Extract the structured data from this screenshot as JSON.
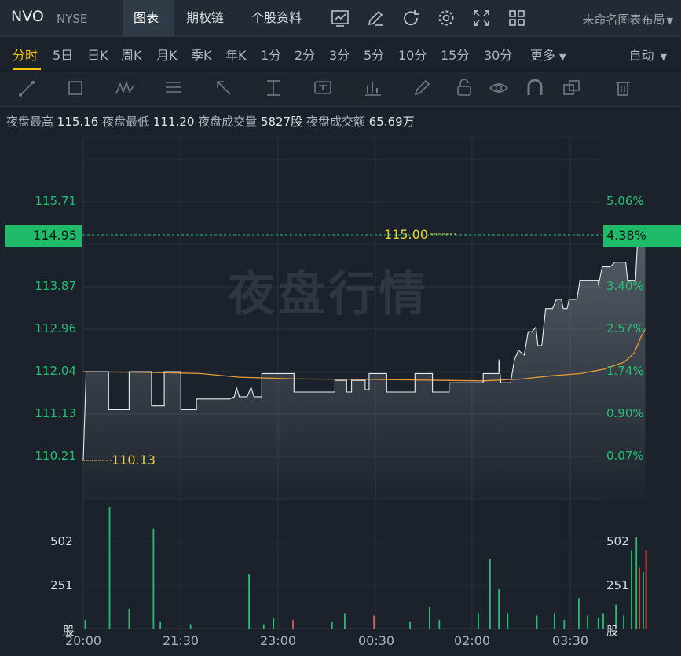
{
  "header": {
    "ticker": "NVO",
    "exchange": "NYSE",
    "tabs": [
      {
        "label": "图表"
      },
      {
        "label": "期权链"
      },
      {
        "label": "个股资料"
      }
    ],
    "icons": [
      "chart-add-icon",
      "pencil-icon",
      "refresh-icon",
      "gear-icon",
      "fullscreen-icon",
      "grid-layout-icon"
    ],
    "layout_label": "未命名图表布局"
  },
  "periods": {
    "items": [
      "分时",
      "5日",
      "日K",
      "周K",
      "月K",
      "季K",
      "年K",
      "1分",
      "2分",
      "3分",
      "5分",
      "10分",
      "15分",
      "30分",
      "更多"
    ],
    "active": "分时",
    "auto_label": "自动"
  },
  "stats": {
    "high_label": "夜盘最高",
    "high": "115.16",
    "low_label": "夜盘最低",
    "low": "111.20",
    "volume_label": "夜盘成交量",
    "volume": "5827股",
    "amount_label": "夜盘成交额",
    "amount": "65.69万"
  },
  "watermark": "夜盘行情",
  "colors": {
    "up": "#21c173",
    "down": "#e05a5a",
    "avg_line": "#e89a3c",
    "price_line": "#e8ecf0",
    "badge": "#1fbb6b"
  },
  "chart_data": {
    "type": "line",
    "price_axis": [
      "115.71",
      "113.87",
      "112.96",
      "112.04",
      "111.13",
      "110.21"
    ],
    "pct_axis": [
      "5.06%",
      "3.40%",
      "2.57%",
      "1.74%",
      "0.90%",
      "0.07%"
    ],
    "current_price": "114.95",
    "current_pct": "4.38%",
    "high_annotation": "115.00",
    "low_annotation": "110.13",
    "x_ticks": [
      "20:00",
      "21:30",
      "23:00",
      "00:30",
      "02:00",
      "03:30"
    ],
    "volume_axis": [
      "502",
      "251"
    ],
    "volume_unit": "股",
    "price_series": [
      [
        0,
        110.13
      ],
      [
        0.3,
        112.04
      ],
      [
        2.6,
        112.04
      ],
      [
        2.6,
        111.22
      ],
      [
        4.7,
        111.22
      ],
      [
        4.7,
        112.04
      ],
      [
        7.0,
        112.04
      ],
      [
        7.0,
        111.3
      ],
      [
        8.3,
        111.3
      ],
      [
        8.3,
        112.04
      ],
      [
        10.0,
        112.04
      ],
      [
        10.0,
        111.22
      ],
      [
        11.6,
        111.22
      ],
      [
        11.6,
        111.45
      ],
      [
        13.8,
        111.45
      ],
      [
        15.0,
        111.45
      ],
      [
        15.5,
        111.5
      ],
      [
        15.7,
        111.7
      ],
      [
        16.0,
        111.5
      ],
      [
        16.8,
        111.5
      ],
      [
        17.2,
        111.7
      ],
      [
        17.5,
        111.5
      ],
      [
        18.3,
        111.5
      ],
      [
        18.3,
        112.0
      ],
      [
        21.6,
        112.0
      ],
      [
        21.6,
        111.6
      ],
      [
        25.8,
        111.6
      ],
      [
        25.8,
        111.85
      ],
      [
        27.0,
        111.85
      ],
      [
        27.0,
        111.6
      ],
      [
        27.5,
        111.6
      ],
      [
        27.5,
        111.85
      ],
      [
        28.9,
        111.85
      ],
      [
        28.9,
        111.65
      ],
      [
        29.3,
        111.65
      ],
      [
        29.3,
        112.0
      ],
      [
        31.1,
        112.0
      ],
      [
        31.1,
        111.6
      ],
      [
        34.0,
        111.6
      ],
      [
        34.0,
        112.0
      ],
      [
        35.8,
        112.0
      ],
      [
        35.8,
        111.6
      ],
      [
        37.5,
        111.6
      ],
      [
        37.5,
        111.8
      ],
      [
        41.0,
        111.8
      ],
      [
        41.0,
        112.0
      ],
      [
        42.6,
        112.0
      ],
      [
        42.6,
        112.3
      ],
      [
        42.8,
        111.8
      ],
      [
        43.8,
        111.8
      ],
      [
        44.2,
        112.3
      ],
      [
        44.6,
        112.5
      ],
      [
        45.2,
        112.4
      ],
      [
        45.6,
        112.9
      ],
      [
        46.0,
        112.9
      ],
      [
        46.4,
        113.0
      ],
      [
        46.6,
        112.6
      ],
      [
        47.0,
        112.6
      ],
      [
        47.4,
        113.4
      ],
      [
        48.1,
        113.4
      ],
      [
        48.5,
        113.6
      ],
      [
        49.0,
        113.6
      ],
      [
        49.2,
        113.4
      ],
      [
        49.6,
        113.4
      ],
      [
        49.8,
        113.6
      ],
      [
        50.6,
        113.6
      ],
      [
        50.9,
        114.0
      ],
      [
        52.8,
        114.0
      ],
      [
        52.8,
        113.9
      ],
      [
        53.2,
        114.3
      ],
      [
        54.0,
        114.3
      ],
      [
        54.5,
        114.4
      ],
      [
        55.6,
        114.4
      ],
      [
        55.8,
        114.0
      ],
      [
        56.6,
        114.0
      ],
      [
        56.8,
        114.8
      ],
      [
        57.1,
        115.0
      ],
      [
        57.4,
        114.9
      ],
      [
        57.6,
        115.0
      ]
    ],
    "avg_series": [
      [
        0,
        112.04
      ],
      [
        8.0,
        112.02
      ],
      [
        12.0,
        112.0
      ],
      [
        16.0,
        111.92
      ],
      [
        22.0,
        111.88
      ],
      [
        30.0,
        111.87
      ],
      [
        37.0,
        111.85
      ],
      [
        41.0,
        111.84
      ],
      [
        45.0,
        111.88
      ],
      [
        48.0,
        111.95
      ],
      [
        51.0,
        112.0
      ],
      [
        53.5,
        112.1
      ],
      [
        55.5,
        112.25
      ],
      [
        56.5,
        112.45
      ],
      [
        57.2,
        112.8
      ],
      [
        57.6,
        112.96
      ]
    ],
    "volume_series": [
      [
        0.2,
        40
      ],
      [
        2.7,
        560
      ],
      [
        4.7,
        90
      ],
      [
        7.2,
        460
      ],
      [
        7.9,
        30
      ],
      [
        11.0,
        20
      ],
      [
        17.0,
        250
      ],
      [
        18.5,
        20
      ],
      [
        19.5,
        50
      ],
      [
        21.5,
        40
      ],
      [
        25.5,
        30
      ],
      [
        26.8,
        70
      ],
      [
        29.8,
        60
      ],
      [
        33.5,
        30
      ],
      [
        35.5,
        100
      ],
      [
        36.5,
        40
      ],
      [
        40.5,
        70
      ],
      [
        41.7,
        320
      ],
      [
        42.6,
        180
      ],
      [
        43.5,
        70
      ],
      [
        46.5,
        60
      ],
      [
        48.3,
        70
      ],
      [
        49.3,
        40
      ],
      [
        50.8,
        140
      ],
      [
        51.7,
        60
      ],
      [
        52.8,
        50
      ],
      [
        53.3,
        70
      ],
      [
        54.6,
        110
      ],
      [
        55.4,
        60
      ],
      [
        56.2,
        360
      ],
      [
        56.7,
        420
      ],
      [
        57.0,
        280
      ],
      [
        57.4,
        260
      ],
      [
        57.7,
        360
      ]
    ],
    "volume_down_indices": [
      9,
      12,
      31,
      33
    ]
  }
}
